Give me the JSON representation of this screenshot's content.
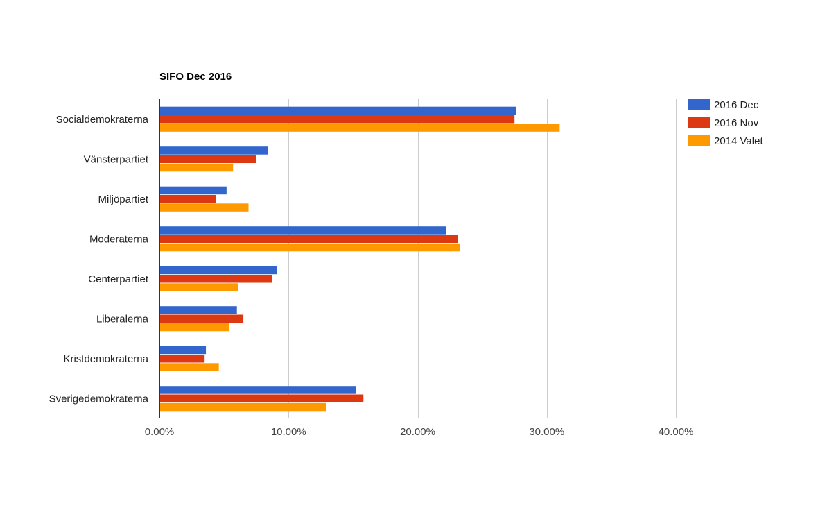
{
  "chart_data": {
    "type": "bar",
    "orientation": "horizontal",
    "title": "SIFO Dec 2016",
    "categories": [
      "Socialdemokraterna",
      "Vänsterpartiet",
      "Miljöpartiet",
      "Moderaterna",
      "Centerpartiet",
      "Liberalerna",
      "Kristdemokraterna",
      "Sverigedemokraterna"
    ],
    "series": [
      {
        "name": "2016 Dec",
        "color": "#3366cc",
        "values": [
          27.6,
          8.4,
          5.2,
          22.2,
          9.1,
          6.0,
          3.6,
          15.2
        ]
      },
      {
        "name": "2016 Nov",
        "color": "#dc3912",
        "values": [
          27.5,
          7.5,
          4.4,
          23.1,
          8.7,
          6.5,
          3.5,
          15.8
        ]
      },
      {
        "name": "2014 Valet",
        "color": "#ff9900",
        "values": [
          31.0,
          5.7,
          6.9,
          23.3,
          6.1,
          5.4,
          4.6,
          12.9
        ]
      }
    ],
    "xlim": [
      0,
      40
    ],
    "xticks": [
      "0.00%",
      "10.00%",
      "20.00%",
      "30.00%",
      "40.00%"
    ],
    "grid": true,
    "legend": "right"
  }
}
